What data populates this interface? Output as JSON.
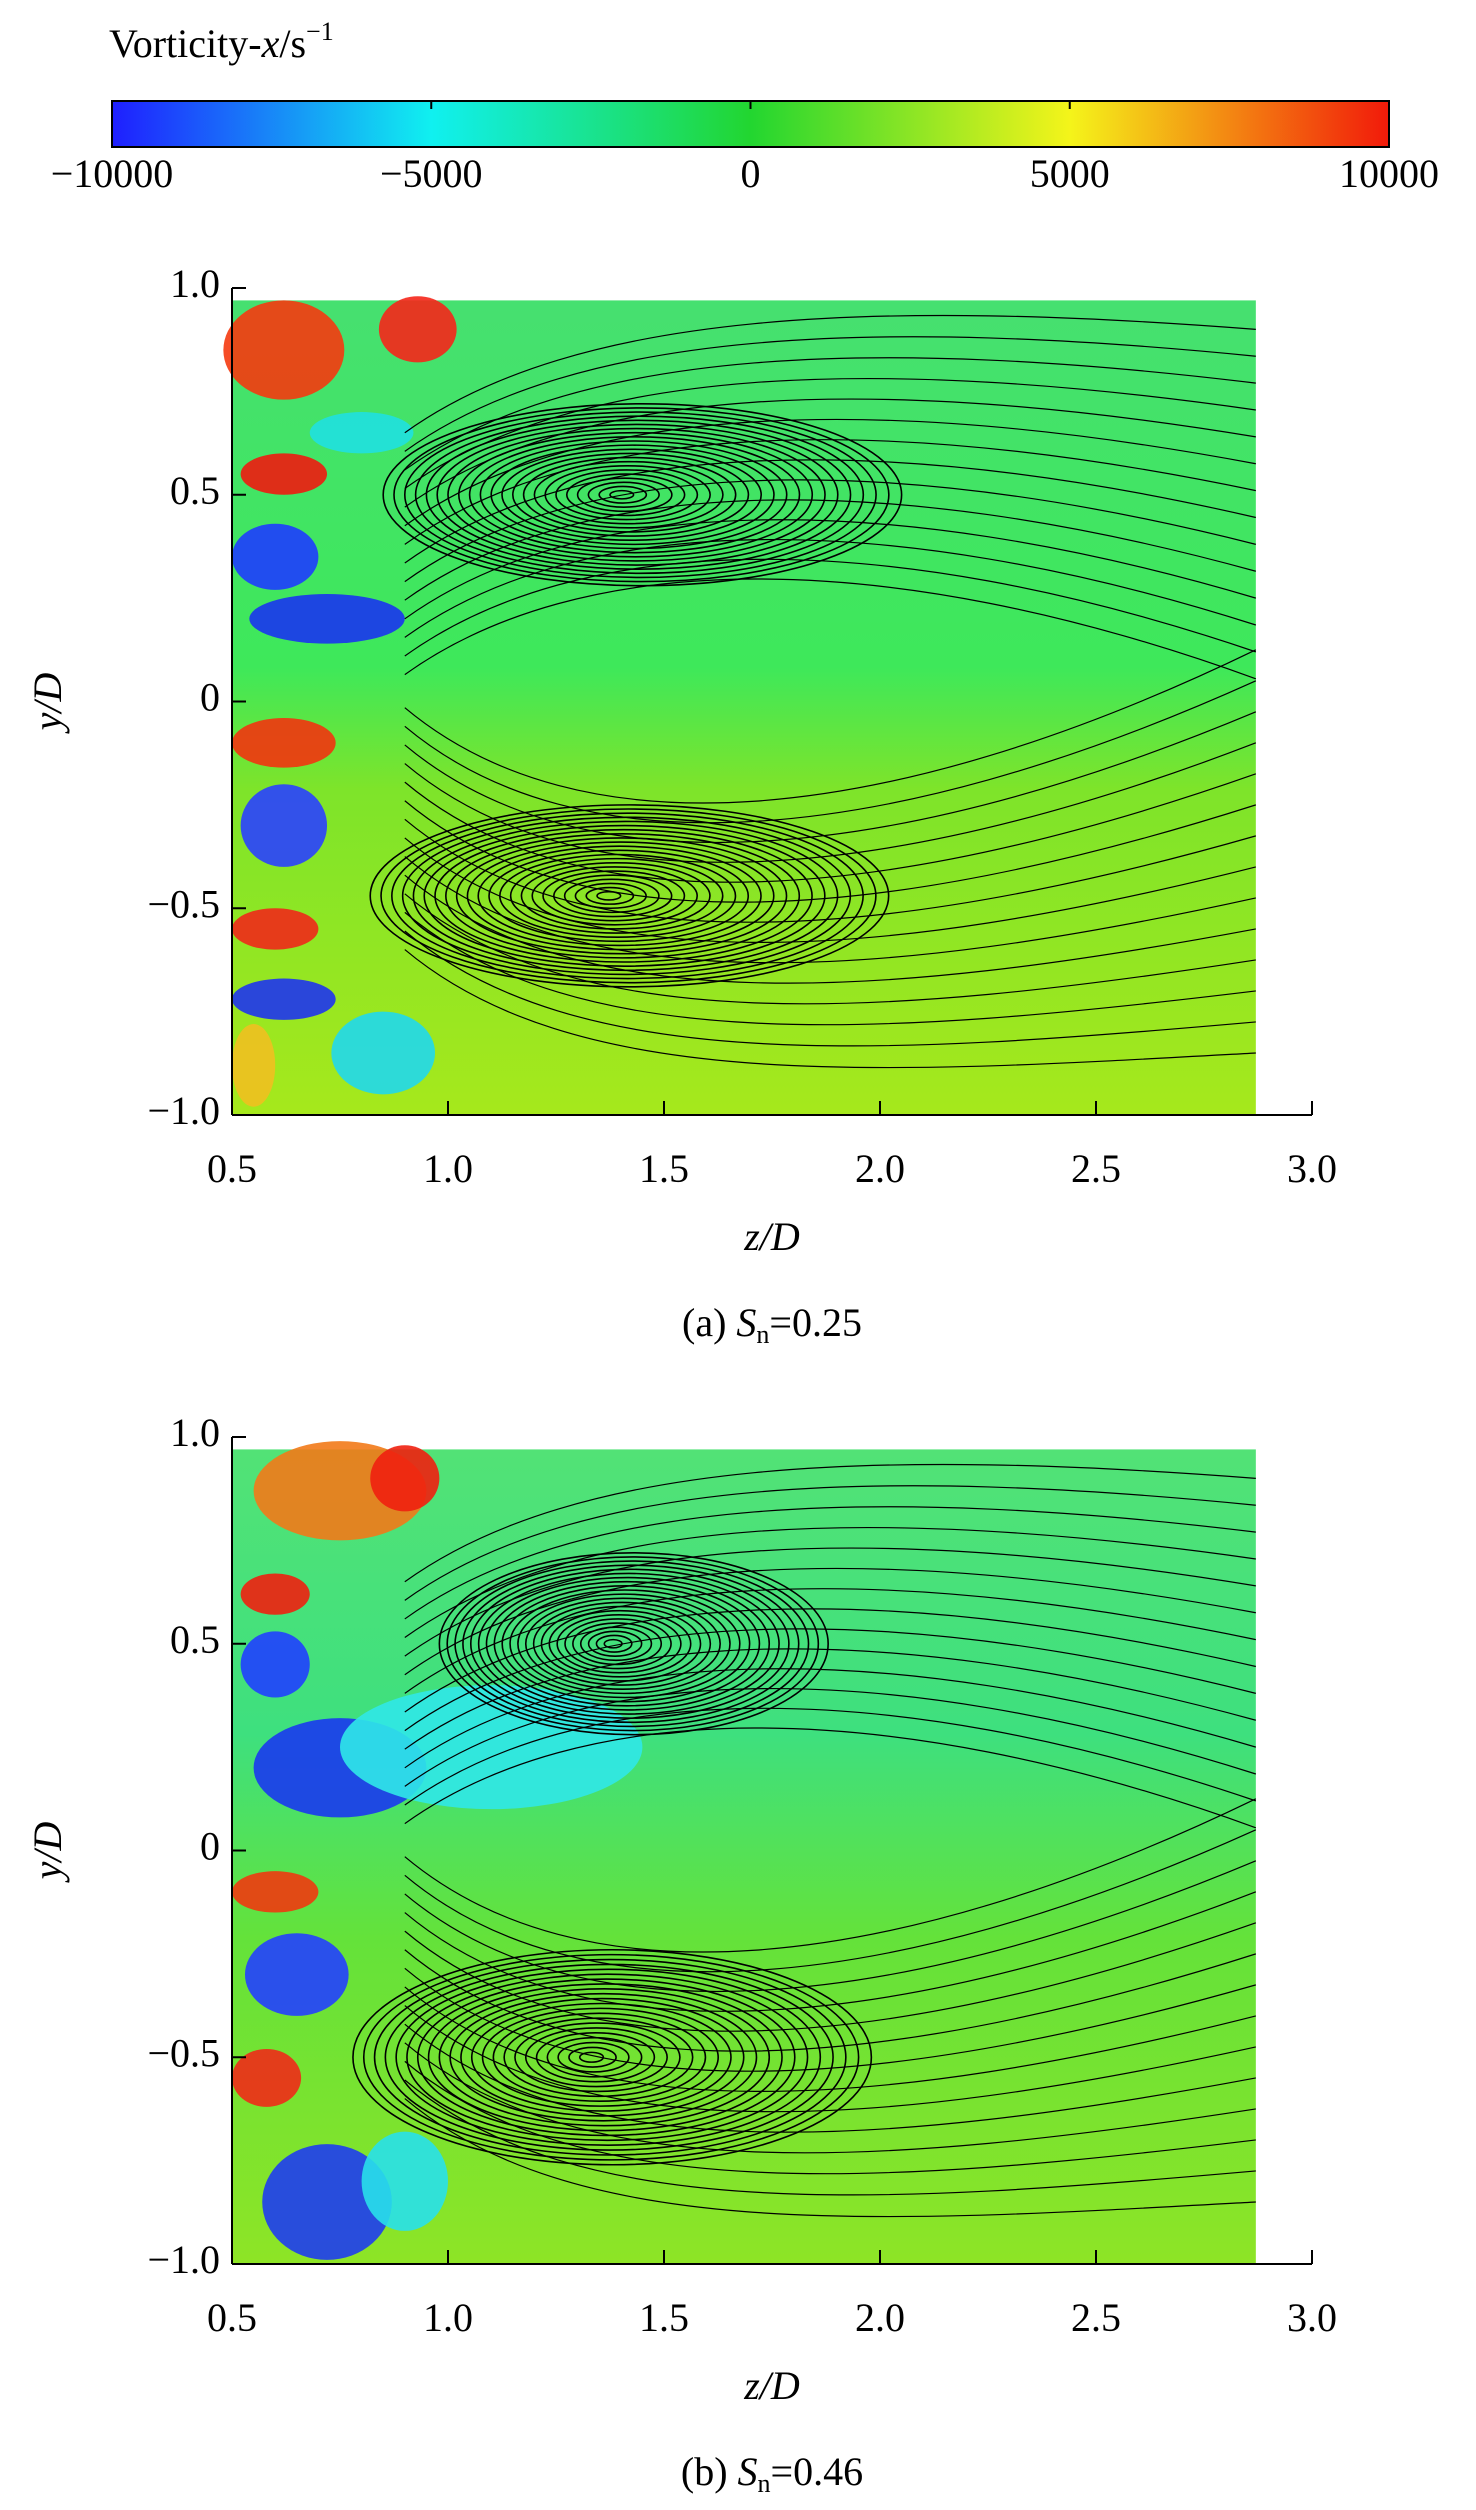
{
  "colorbar": {
    "label": [
      "Vorticity-",
      "x",
      "/s",
      "−1"
    ],
    "lim": [
      -10000,
      10000
    ],
    "ticks": [
      {
        "value": -10000,
        "label": "−10000"
      },
      {
        "value": -5000,
        "label": "−5000"
      },
      0,
      5000,
      10000
    ]
  },
  "chart_data": [
    {
      "type": "contour",
      "caption": [
        "(a) ",
        "S",
        "n",
        "=0.25"
      ],
      "xlabel": "z/D",
      "ylabel": "y/D",
      "xlim": [
        0.5,
        3.0
      ],
      "ylim": [
        -1,
        1
      ],
      "xticks": [
        0.5,
        {
          "value": 1,
          "label": "1.0"
        },
        1.5,
        {
          "value": 2,
          "label": "2.0"
        },
        2.5,
        {
          "value": 3,
          "label": "3.0"
        }
      ],
      "yticks": [
        {
          "value": -1,
          "label": "−1.0"
        },
        {
          "value": -0.5,
          "label": "−0.5"
        },
        0,
        0.5,
        {
          "value": 1,
          "label": "1.0"
        }
      ]
    },
    {
      "type": "contour",
      "caption": [
        "(b) ",
        "S",
        "n",
        "=0.46"
      ],
      "xlabel": "z/D",
      "ylabel": "y/D",
      "xlim": [
        0.5,
        3.0
      ],
      "ylim": [
        -1,
        1
      ],
      "xticks": [
        0.5,
        {
          "value": 1,
          "label": "1.0"
        },
        1.5,
        {
          "value": 2,
          "label": "2.0"
        },
        2.5,
        {
          "value": 3,
          "label": "3.0"
        }
      ],
      "yticks": [
        {
          "value": -1,
          "label": "−1.0"
        },
        {
          "value": -0.5,
          "label": "−0.5"
        },
        0,
        0.5,
        {
          "value": 1,
          "label": "1.0"
        }
      ]
    }
  ]
}
